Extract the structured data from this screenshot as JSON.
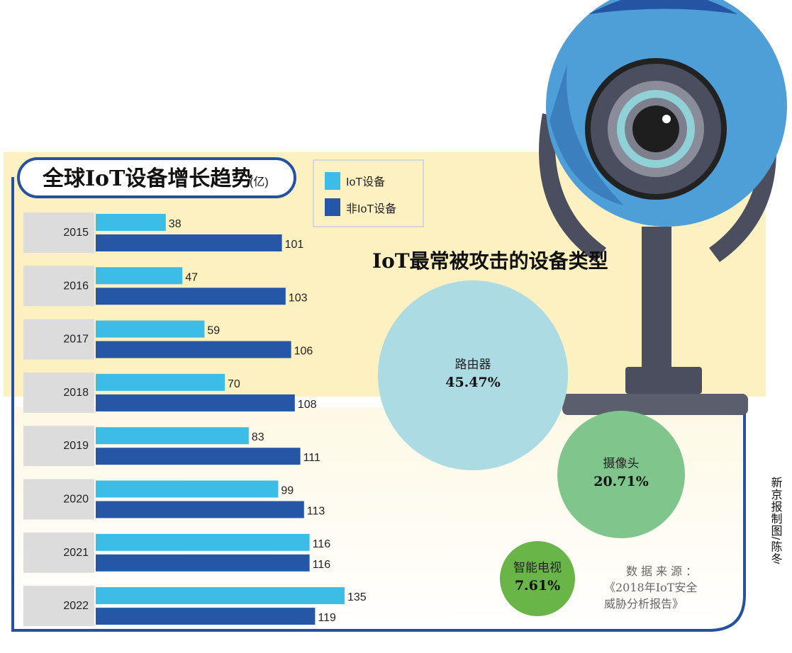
{
  "chart_data": [
    {
      "type": "bar",
      "orientation": "horizontal",
      "title": "全球IoT设备增长趋势",
      "unit": "(亿)",
      "categories": [
        "2015",
        "2016",
        "2017",
        "2018",
        "2019",
        "2020",
        "2021",
        "2022"
      ],
      "series": [
        {
          "name": "IoT设备",
          "color": "#3bbde8",
          "values": [
            38,
            47,
            59,
            70,
            83,
            99,
            116,
            135
          ]
        },
        {
          "name": "非IoT设备",
          "color": "#2656a6",
          "values": [
            101,
            103,
            106,
            108,
            111,
            113,
            116,
            119
          ]
        }
      ],
      "legend_position": "top-right",
      "grid": false
    },
    {
      "type": "bubble",
      "title": "IoT最常被攻击的设备类型",
      "items": [
        {
          "label": "路由器",
          "value": "45.47%",
          "color": "#acdbe4"
        },
        {
          "label": "摄像头",
          "value": "20.71%",
          "color": "#80c58c"
        },
        {
          "label": "智能电视",
          "value": "7.61%",
          "color": "#69b548"
        }
      ]
    }
  ],
  "source": {
    "label": "数据来源：",
    "line1": "《2018年IoT安全",
    "line2": "威胁分析报告》"
  },
  "credit": "新京报制图/陈冬",
  "illustration": "webcam-icon"
}
